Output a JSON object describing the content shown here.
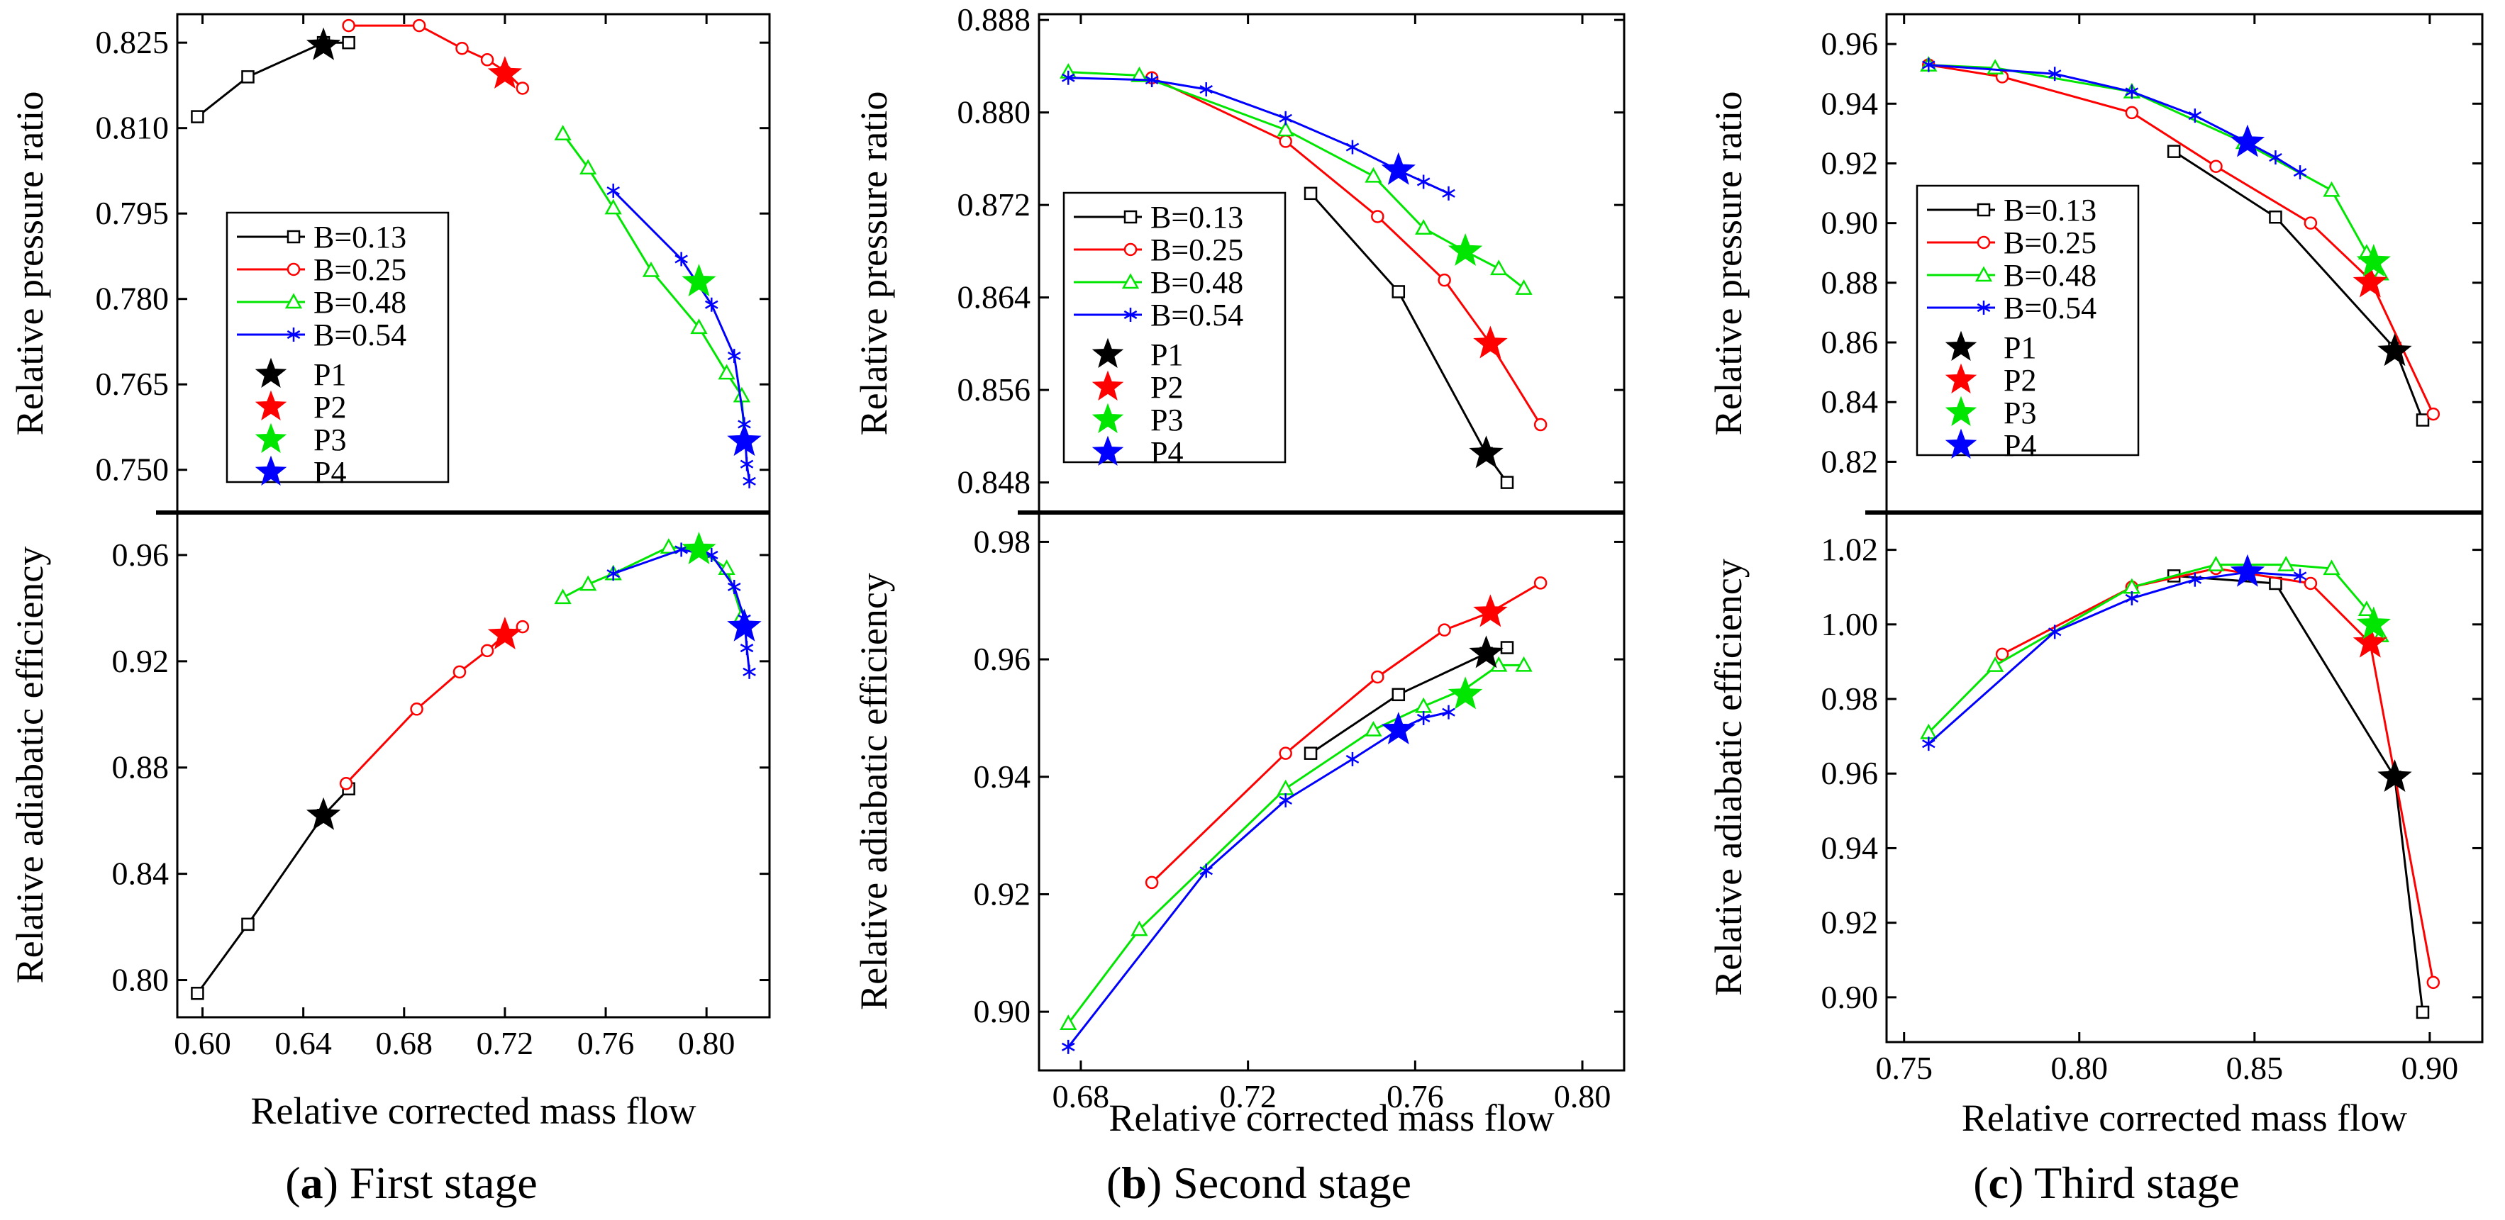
{
  "series_styles": [
    {
      "label": "B=0.13",
      "color": "#000000",
      "marker": "square"
    },
    {
      "label": "B=0.25",
      "color": "#ff0000",
      "marker": "circle"
    },
    {
      "label": "B=0.48",
      "color": "#00e600",
      "marker": "triangle"
    },
    {
      "label": "B=0.54",
      "color": "#0000ff",
      "marker": "asterisk"
    }
  ],
  "point_styles": [
    {
      "label": "P1",
      "color": "#000000"
    },
    {
      "label": "P2",
      "color": "#ff0000"
    },
    {
      "label": "P3",
      "color": "#00e600"
    },
    {
      "label": "P4",
      "color": "#0000ff"
    }
  ],
  "chart_data": [
    {
      "type": "line",
      "caption": {
        "bold": "a",
        "text": "First stage"
      },
      "xlabel": "Relative corrected mass flow",
      "xlim": [
        0.59,
        0.825
      ],
      "xticks": [
        0.6,
        0.64,
        0.68,
        0.72,
        0.76,
        0.8
      ],
      "xtick_labels": [
        "0.60",
        "0.64",
        "0.68",
        "0.72",
        "0.76",
        "0.80"
      ],
      "top": {
        "ylabel": "Relative pressure ratio",
        "ylim": [
          0.7425,
          0.83
        ],
        "yticks": [
          0.75,
          0.765,
          0.78,
          0.795,
          0.81,
          0.825
        ],
        "ytick_labels": [
          "0.750",
          "0.765",
          "0.780",
          "0.795",
          "0.810",
          "0.825"
        ],
        "series": [
          {
            "name": "B=0.13",
            "x": [
              0.598,
              0.618,
              0.648,
              0.658
            ],
            "y": [
              0.812,
              0.819,
              0.825,
              0.825
            ]
          },
          {
            "name": "B=0.25",
            "x": [
              0.658,
              0.686,
              0.703,
              0.713,
              0.72,
              0.727
            ],
            "y": [
              0.828,
              0.828,
              0.824,
              0.822,
              0.82,
              0.817
            ]
          },
          {
            "name": "B=0.48",
            "x": [
              0.743,
              0.753,
              0.763,
              0.778,
              0.797,
              0.808,
              0.814,
              0.815
            ],
            "y": [
              0.809,
              0.803,
              0.796,
              0.785,
              0.775,
              0.767,
              0.763,
              0.755
            ]
          },
          {
            "name": "B=0.54",
            "x": [
              0.763,
              0.79,
              0.802,
              0.811,
              0.815,
              0.816,
              0.817
            ],
            "y": [
              0.799,
              0.787,
              0.779,
              0.77,
              0.758,
              0.751,
              0.748
            ]
          }
        ],
        "points": [
          {
            "name": "P1",
            "x": 0.648,
            "y": 0.8245
          },
          {
            "name": "P2",
            "x": 0.72,
            "y": 0.8195
          },
          {
            "name": "P3",
            "x": 0.797,
            "y": 0.783
          },
          {
            "name": "P4",
            "x": 0.815,
            "y": 0.755
          }
        ]
      },
      "bottom": {
        "ylabel": "Relative adiabatic efficiency",
        "ylim": [
          0.786,
          0.976
        ],
        "yticks": [
          0.8,
          0.84,
          0.88,
          0.92,
          0.96
        ],
        "ytick_labels": [
          "0.80",
          "0.84",
          "0.88",
          "0.92",
          "0.96"
        ],
        "series": [
          {
            "name": "B=0.13",
            "x": [
              0.598,
              0.618,
              0.648,
              0.658
            ],
            "y": [
              0.795,
              0.821,
              0.862,
              0.872
            ]
          },
          {
            "name": "B=0.25",
            "x": [
              0.657,
              0.685,
              0.702,
              0.713,
              0.72,
              0.727
            ],
            "y": [
              0.874,
              0.902,
              0.916,
              0.924,
              0.93,
              0.933
            ]
          },
          {
            "name": "B=0.48",
            "x": [
              0.743,
              0.753,
              0.763,
              0.785,
              0.797,
              0.808,
              0.814
            ],
            "y": [
              0.944,
              0.949,
              0.953,
              0.963,
              0.962,
              0.955,
              0.937
            ]
          },
          {
            "name": "B=0.54",
            "x": [
              0.763,
              0.79,
              0.802,
              0.811,
              0.815,
              0.816,
              0.817
            ],
            "y": [
              0.953,
              0.962,
              0.96,
              0.948,
              0.936,
              0.925,
              0.916
            ]
          }
        ],
        "points": [
          {
            "name": "P1",
            "x": 0.648,
            "y": 0.862
          },
          {
            "name": "P2",
            "x": 0.72,
            "y": 0.93
          },
          {
            "name": "P3",
            "x": 0.797,
            "y": 0.962
          },
          {
            "name": "P4",
            "x": 0.815,
            "y": 0.933
          }
        ]
      }
    },
    {
      "type": "line",
      "caption": {
        "bold": "b",
        "text": "Second stage"
      },
      "xlabel": "Relative corrected mass flow",
      "xlim": [
        0.67,
        0.81
      ],
      "xticks": [
        0.68,
        0.72,
        0.76,
        0.8
      ],
      "xtick_labels": [
        "0.68",
        "0.72",
        "0.76",
        "0.80"
      ],
      "top": {
        "ylabel": "Relative pressure ratio",
        "ylim": [
          0.8454,
          0.8885
        ],
        "yticks": [
          0.848,
          0.856,
          0.864,
          0.872,
          0.88,
          0.888
        ],
        "ytick_labels": [
          "0.848",
          "0.856",
          "0.864",
          "0.872",
          "0.880",
          "0.888"
        ],
        "series": [
          {
            "name": "B=0.13",
            "x": [
              0.735,
              0.756,
              0.777,
              0.782
            ],
            "y": [
              0.873,
              0.8645,
              0.8505,
              0.848
            ]
          },
          {
            "name": "B=0.25",
            "x": [
              0.697,
              0.729,
              0.751,
              0.767,
              0.778,
              0.79
            ],
            "y": [
              0.883,
              0.8775,
              0.871,
              0.8655,
              0.86,
              0.853
            ]
          },
          {
            "name": "B=0.48",
            "x": [
              0.677,
              0.694,
              0.729,
              0.75,
              0.762,
              0.772,
              0.78,
              0.786
            ],
            "y": [
              0.8835,
              0.8832,
              0.8785,
              0.8745,
              0.87,
              0.868,
              0.8665,
              0.8648
            ]
          },
          {
            "name": "B=0.54",
            "x": [
              0.677,
              0.697,
              0.71,
              0.729,
              0.745,
              0.756,
              0.762,
              0.768
            ],
            "y": [
              0.883,
              0.8828,
              0.882,
              0.8795,
              0.877,
              0.875,
              0.874,
              0.873
            ]
          }
        ],
        "points": [
          {
            "name": "P1",
            "x": 0.777,
            "y": 0.8505
          },
          {
            "name": "P2",
            "x": 0.778,
            "y": 0.86
          },
          {
            "name": "P3",
            "x": 0.772,
            "y": 0.868
          },
          {
            "name": "P4",
            "x": 0.756,
            "y": 0.875
          }
        ]
      },
      "bottom": {
        "ylabel": "Relative adiabatic efficiency",
        "ylim": [
          0.89,
          0.985
        ],
        "yticks": [
          0.9,
          0.92,
          0.94,
          0.96,
          0.98
        ],
        "ytick_labels": [
          "0.90",
          "0.92",
          "0.94",
          "0.96",
          "0.98"
        ],
        "series": [
          {
            "name": "B=0.13",
            "x": [
              0.735,
              0.756,
              0.777,
              0.782
            ],
            "y": [
              0.944,
              0.954,
              0.961,
              0.962
            ]
          },
          {
            "name": "B=0.25",
            "x": [
              0.697,
              0.729,
              0.751,
              0.767,
              0.778,
              0.79
            ],
            "y": [
              0.922,
              0.944,
              0.957,
              0.965,
              0.968,
              0.973
            ]
          },
          {
            "name": "B=0.48",
            "x": [
              0.677,
              0.694,
              0.729,
              0.75,
              0.762,
              0.772,
              0.78,
              0.786
            ],
            "y": [
              0.898,
              0.914,
              0.938,
              0.948,
              0.952,
              0.955,
              0.959,
              0.959
            ]
          },
          {
            "name": "B=0.54",
            "x": [
              0.677,
              0.71,
              0.729,
              0.745,
              0.756,
              0.762,
              0.768
            ],
            "y": [
              0.894,
              0.924,
              0.936,
              0.943,
              0.948,
              0.95,
              0.951
            ]
          }
        ],
        "points": [
          {
            "name": "P1",
            "x": 0.777,
            "y": 0.961
          },
          {
            "name": "P2",
            "x": 0.778,
            "y": 0.968
          },
          {
            "name": "P3",
            "x": 0.772,
            "y": 0.954
          },
          {
            "name": "P4",
            "x": 0.756,
            "y": 0.948
          }
        ]
      }
    },
    {
      "type": "line",
      "caption": {
        "bold": "c",
        "text": "Third stage"
      },
      "xlabel": "Relative corrected mass flow",
      "xlim": [
        0.745,
        0.915
      ],
      "xticks": [
        0.75,
        0.8,
        0.85,
        0.9
      ],
      "xtick_labels": [
        "0.75",
        "0.80",
        "0.85",
        "0.90"
      ],
      "top": {
        "ylabel": "Relative pressure ratio",
        "ylim": [
          0.803,
          0.97
        ],
        "yticks": [
          0.82,
          0.84,
          0.86,
          0.88,
          0.9,
          0.92,
          0.94,
          0.96
        ],
        "ytick_labels": [
          "0.82",
          "0.84",
          "0.86",
          "0.88",
          "0.90",
          "0.92",
          "0.94",
          "0.96"
        ],
        "series": [
          {
            "name": "B=0.13",
            "x": [
              0.827,
              0.856,
              0.89,
              0.898
            ],
            "y": [
              0.924,
              0.902,
              0.858,
              0.834
            ]
          },
          {
            "name": "B=0.25",
            "x": [
              0.757,
              0.778,
              0.815,
              0.839,
              0.866,
              0.883,
              0.901
            ],
            "y": [
              0.953,
              0.949,
              0.937,
              0.919,
              0.9,
              0.881,
              0.836
            ]
          },
          {
            "name": "B=0.48",
            "x": [
              0.757,
              0.776,
              0.815,
              0.847,
              0.872,
              0.882,
              0.886
            ],
            "y": [
              0.953,
              0.952,
              0.944,
              0.927,
              0.911,
              0.89,
              0.883
            ]
          },
          {
            "name": "B=0.54",
            "x": [
              0.757,
              0.793,
              0.815,
              0.833,
              0.848,
              0.856,
              0.863
            ],
            "y": [
              0.953,
              0.95,
              0.944,
              0.936,
              0.927,
              0.922,
              0.917
            ]
          }
        ],
        "points": [
          {
            "name": "P1",
            "x": 0.89,
            "y": 0.857
          },
          {
            "name": "P2",
            "x": 0.883,
            "y": 0.88
          },
          {
            "name": "P3",
            "x": 0.884,
            "y": 0.887
          },
          {
            "name": "P4",
            "x": 0.848,
            "y": 0.927
          }
        ]
      },
      "bottom": {
        "ylabel": "Relative adiabatic efficiency",
        "ylim": [
          0.888,
          1.03
        ],
        "yticks": [
          0.9,
          0.92,
          0.94,
          0.96,
          0.98,
          1.0,
          1.02
        ],
        "ytick_labels": [
          "0.90",
          "0.92",
          "0.94",
          "0.96",
          "0.98",
          "1.00",
          "1.02"
        ],
        "series": [
          {
            "name": "B=0.13",
            "x": [
              0.827,
              0.856,
              0.89,
              0.898
            ],
            "y": [
              1.013,
              1.011,
              0.959,
              0.896
            ]
          },
          {
            "name": "B=0.25",
            "x": [
              0.778,
              0.815,
              0.839,
              0.866,
              0.883,
              0.901
            ],
            "y": [
              0.992,
              1.01,
              1.015,
              1.011,
              0.995,
              0.904
            ]
          },
          {
            "name": "B=0.48",
            "x": [
              0.757,
              0.776,
              0.815,
              0.839,
              0.859,
              0.872,
              0.882,
              0.886
            ],
            "y": [
              0.971,
              0.989,
              1.01,
              1.016,
              1.016,
              1.015,
              1.004,
              0.997
            ]
          },
          {
            "name": "B=0.54",
            "x": [
              0.757,
              0.793,
              0.815,
              0.833,
              0.848,
              0.863
            ],
            "y": [
              0.968,
              0.998,
              1.007,
              1.012,
              1.014,
              1.013
            ]
          }
        ],
        "points": [
          {
            "name": "P1",
            "x": 0.89,
            "y": 0.959
          },
          {
            "name": "P2",
            "x": 0.883,
            "y": 0.995
          },
          {
            "name": "P3",
            "x": 0.884,
            "y": 1.0
          },
          {
            "name": "P4",
            "x": 0.848,
            "y": 1.014
          }
        ]
      }
    }
  ]
}
